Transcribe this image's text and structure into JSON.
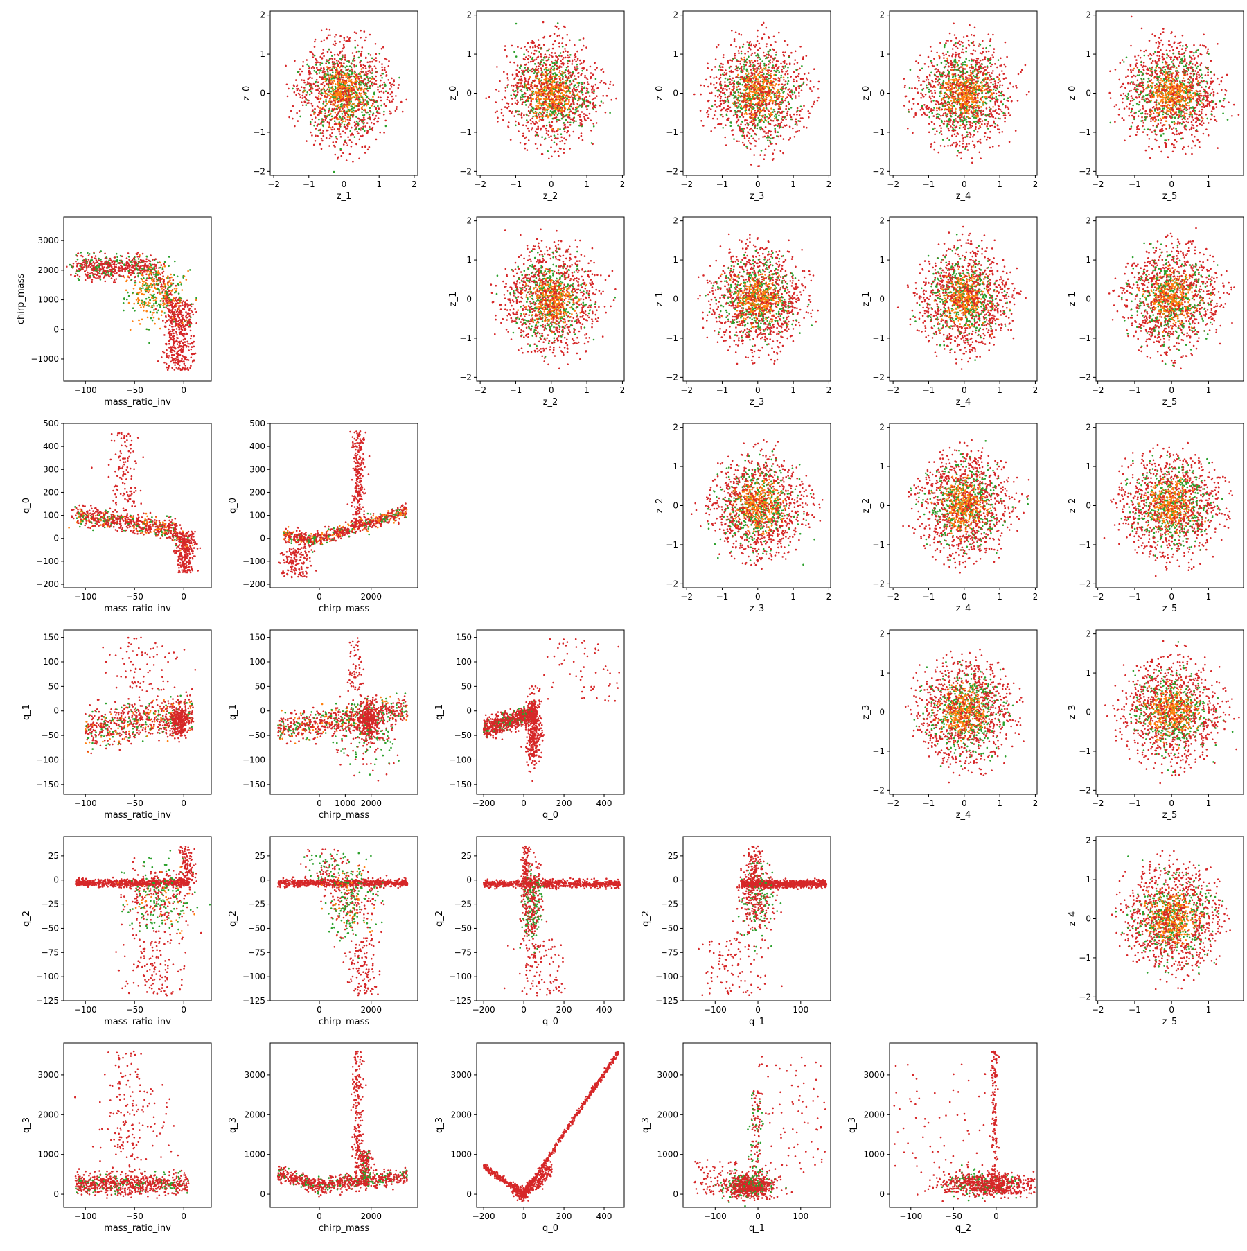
{
  "chart_data": {
    "type": "scatter",
    "layout": "pair-grid",
    "series_colors": [
      "#2ca02c",
      "#ff7f0e",
      "#d62728"
    ],
    "upper_triangle": {
      "description_rows": [
        "z_0",
        "z_1",
        "z_2",
        "z_3",
        "z_4"
      ],
      "xlim": [
        -2.1,
        2.1
      ],
      "ylim": [
        -2.1,
        2.1
      ],
      "yticks": [
        -2,
        -1,
        0,
        1,
        2
      ],
      "xticks": [
        -2,
        -1,
        0,
        1,
        2
      ]
    },
    "panels": [
      {
        "row": 0,
        "col": 1,
        "xlabel": "z_1",
        "ylabel": "z_0",
        "xticks": [
          "-2",
          "-1",
          "0",
          "1",
          "2"
        ],
        "yticks": [
          "-2",
          "-1",
          "0",
          "1",
          "2"
        ],
        "pattern": "gauss"
      },
      {
        "row": 0,
        "col": 2,
        "xlabel": "z_2",
        "ylabel": "z_0",
        "xticks": [
          "-2",
          "-1",
          "0",
          "1",
          "2"
        ],
        "yticks": [
          "-2",
          "-1",
          "0",
          "1",
          "2"
        ],
        "pattern": "gauss"
      },
      {
        "row": 0,
        "col": 3,
        "xlabel": "z_3",
        "ylabel": "z_0",
        "xticks": [
          "-2",
          "-1",
          "0",
          "1",
          "2"
        ],
        "yticks": [
          "-2",
          "-1",
          "0",
          "1",
          "2"
        ],
        "pattern": "gauss"
      },
      {
        "row": 0,
        "col": 4,
        "xlabel": "z_4",
        "ylabel": "z_0",
        "xticks": [
          "-2",
          "-1",
          "0",
          "1",
          "2"
        ],
        "yticks": [
          "-2",
          "-1",
          "0",
          "1",
          "2"
        ],
        "pattern": "gauss"
      },
      {
        "row": 0,
        "col": 5,
        "xlabel": "z_5",
        "ylabel": "z_0",
        "xticks": [
          "-2",
          "-1",
          "0",
          "1"
        ],
        "yticks": [
          "-2",
          "-1",
          "0",
          "1",
          "2"
        ],
        "pattern": "gauss"
      },
      {
        "row": 1,
        "col": 0,
        "xlabel": "mass_ratio_inv",
        "ylabel": "chirp_mass",
        "xticks": [
          "-100",
          "-50",
          "0"
        ],
        "yticks": [
          "-1000",
          "0",
          "1000",
          "2000",
          "3000"
        ],
        "pattern": "mr_cm"
      },
      {
        "row": 1,
        "col": 2,
        "xlabel": "z_2",
        "ylabel": "z_1",
        "xticks": [
          "-2",
          "-1",
          "0",
          "1",
          "2"
        ],
        "yticks": [
          "-2",
          "-1",
          "0",
          "1",
          "2"
        ],
        "pattern": "gauss"
      },
      {
        "row": 1,
        "col": 3,
        "xlabel": "z_3",
        "ylabel": "z_1",
        "xticks": [
          "-2",
          "-1",
          "0",
          "1",
          "2"
        ],
        "yticks": [
          "-2",
          "-1",
          "0",
          "1",
          "2"
        ],
        "pattern": "gauss"
      },
      {
        "row": 1,
        "col": 4,
        "xlabel": "z_4",
        "ylabel": "z_1",
        "xticks": [
          "-2",
          "-1",
          "0",
          "1",
          "2"
        ],
        "yticks": [
          "-2",
          "-1",
          "0",
          "1",
          "2"
        ],
        "pattern": "gauss"
      },
      {
        "row": 1,
        "col": 5,
        "xlabel": "z_5",
        "ylabel": "z_1",
        "xticks": [
          "-2",
          "-1",
          "0",
          "1"
        ],
        "yticks": [
          "-2",
          "-1",
          "0",
          "1",
          "2"
        ],
        "pattern": "gauss"
      },
      {
        "row": 2,
        "col": 0,
        "xlabel": "mass_ratio_inv",
        "ylabel": "q_0",
        "xticks": [
          "-100",
          "-50",
          "0"
        ],
        "yticks": [
          "-200",
          "-100",
          "0",
          "100",
          "200",
          "300",
          "400",
          "500"
        ],
        "pattern": "mr_q0"
      },
      {
        "row": 2,
        "col": 1,
        "xlabel": "chirp_mass",
        "ylabel": "q_0",
        "xticks": [
          "0",
          "2000"
        ],
        "yticks": [
          "-200",
          "-100",
          "0",
          "100",
          "200",
          "300",
          "400",
          "500"
        ],
        "pattern": "cm_q0"
      },
      {
        "row": 2,
        "col": 3,
        "xlabel": "z_3",
        "ylabel": "z_2",
        "xticks": [
          "-2",
          "-1",
          "0",
          "1",
          "2"
        ],
        "yticks": [
          "-2",
          "-1",
          "0",
          "1",
          "2"
        ],
        "pattern": "gauss"
      },
      {
        "row": 2,
        "col": 4,
        "xlabel": "z_4",
        "ylabel": "z_2",
        "xticks": [
          "-2",
          "-1",
          "0",
          "1",
          "2"
        ],
        "yticks": [
          "-2",
          "-1",
          "0",
          "1",
          "2"
        ],
        "pattern": "gauss"
      },
      {
        "row": 2,
        "col": 5,
        "xlabel": "z_5",
        "ylabel": "z_2",
        "xticks": [
          "-2",
          "-1",
          "0",
          "1"
        ],
        "yticks": [
          "-2",
          "-1",
          "0",
          "1",
          "2"
        ],
        "pattern": "gauss"
      },
      {
        "row": 3,
        "col": 0,
        "xlabel": "mass_ratio_inv",
        "ylabel": "q_1",
        "xticks": [
          "-100",
          "-50",
          "0"
        ],
        "yticks": [
          "-150",
          "-100",
          "-50",
          "0",
          "50",
          "100",
          "150"
        ],
        "pattern": "mr_q1"
      },
      {
        "row": 3,
        "col": 1,
        "xlabel": "chirp_mass",
        "ylabel": "q_1",
        "xticks": [
          "0",
          "1000",
          "2000"
        ],
        "yticks": [
          "-150",
          "-100",
          "-50",
          "0",
          "50",
          "100",
          "150"
        ],
        "pattern": "cm_q1"
      },
      {
        "row": 3,
        "col": 2,
        "xlabel": "q_0",
        "ylabel": "q_1",
        "xticks": [
          "-200",
          "0",
          "200",
          "400"
        ],
        "yticks": [
          "-150",
          "-100",
          "-50",
          "0",
          "50",
          "100",
          "150"
        ],
        "pattern": "q0_q1"
      },
      {
        "row": 3,
        "col": 4,
        "xlabel": "z_4",
        "ylabel": "z_3",
        "xticks": [
          "-2",
          "-1",
          "0",
          "1",
          "2"
        ],
        "yticks": [
          "-2",
          "-1",
          "0",
          "1",
          "2"
        ],
        "pattern": "gauss"
      },
      {
        "row": 3,
        "col": 5,
        "xlabel": "z_5",
        "ylabel": "z_3",
        "xticks": [
          "-2",
          "-1",
          "0",
          "1"
        ],
        "yticks": [
          "-2",
          "-1",
          "0",
          "1",
          "2"
        ],
        "pattern": "gauss"
      },
      {
        "row": 4,
        "col": 0,
        "xlabel": "mass_ratio_inv",
        "ylabel": "q_2",
        "xticks": [
          "-100",
          "-50",
          "0"
        ],
        "yticks": [
          "-125",
          "-100",
          "-75",
          "-50",
          "-25",
          "0",
          "25"
        ],
        "pattern": "mr_q2"
      },
      {
        "row": 4,
        "col": 1,
        "xlabel": "chirp_mass",
        "ylabel": "q_2",
        "xticks": [
          "0",
          "2000"
        ],
        "yticks": [
          "-125",
          "-100",
          "-75",
          "-50",
          "-25",
          "0",
          "25"
        ],
        "pattern": "cm_q2"
      },
      {
        "row": 4,
        "col": 2,
        "xlabel": "q_0",
        "ylabel": "q_2",
        "xticks": [
          "-200",
          "0",
          "200",
          "400"
        ],
        "yticks": [
          "-125",
          "-100",
          "-75",
          "-50",
          "-25",
          "0",
          "25"
        ],
        "pattern": "q0_q2"
      },
      {
        "row": 4,
        "col": 3,
        "xlabel": "q_1",
        "ylabel": "q_2",
        "xticks": [
          "-100",
          "0",
          "100"
        ],
        "yticks": [
          "-125",
          "-100",
          "-75",
          "-50",
          "-25",
          "0",
          "25"
        ],
        "pattern": "q1_q2"
      },
      {
        "row": 4,
        "col": 5,
        "xlabel": "z_5",
        "ylabel": "z_4",
        "xticks": [
          "-2",
          "-1",
          "0",
          "1"
        ],
        "yticks": [
          "-2",
          "-1",
          "0",
          "1",
          "2"
        ],
        "pattern": "gauss"
      },
      {
        "row": 5,
        "col": 0,
        "xlabel": "mass_ratio_inv",
        "ylabel": "q_3",
        "xticks": [
          "-100",
          "-50",
          "0"
        ],
        "yticks": [
          "0",
          "1000",
          "2000",
          "3000"
        ],
        "pattern": "mr_q3"
      },
      {
        "row": 5,
        "col": 1,
        "xlabel": "chirp_mass",
        "ylabel": "q_3",
        "xticks": [
          "0",
          "2000"
        ],
        "yticks": [
          "0",
          "1000",
          "2000",
          "3000"
        ],
        "pattern": "cm_q3"
      },
      {
        "row": 5,
        "col": 2,
        "xlabel": "q_0",
        "ylabel": "q_3",
        "xticks": [
          "-200",
          "0",
          "200",
          "400"
        ],
        "yticks": [
          "0",
          "1000",
          "2000",
          "3000"
        ],
        "pattern": "q0_q3"
      },
      {
        "row": 5,
        "col": 3,
        "xlabel": "q_1",
        "ylabel": "q_3",
        "xticks": [
          "-100",
          "0",
          "100"
        ],
        "yticks": [
          "0",
          "1000",
          "2000",
          "3000"
        ],
        "pattern": "q1_q3"
      },
      {
        "row": 5,
        "col": 4,
        "xlabel": "q_2",
        "ylabel": "q_3",
        "xticks": [
          "-100",
          "-50",
          "0"
        ],
        "yticks": [
          "0",
          "1000",
          "2000",
          "3000"
        ],
        "pattern": "q2_q3"
      }
    ],
    "axis_ranges": {
      "z": [
        -2.1,
        2.1
      ],
      "mass_ratio_inv": [
        -122,
        28
      ],
      "chirp_mass": [
        -1800,
        3800
      ],
      "q_0": [
        -215,
        500
      ],
      "q_1": [
        -165,
        160
      ],
      "q_2": [
        -125,
        45
      ],
      "q_3": [
        -300,
        3800
      ]
    }
  }
}
